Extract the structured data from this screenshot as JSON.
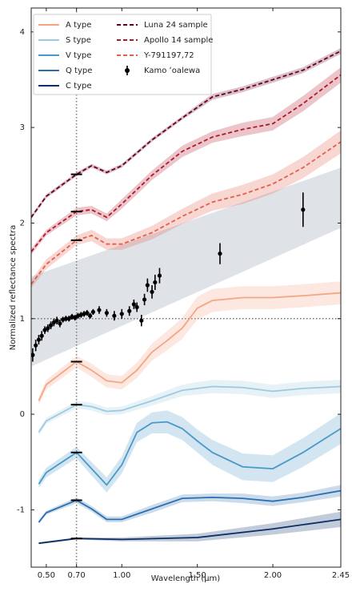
{
  "chart_data": {
    "type": "line",
    "xlabel": "Wavelength (μm)",
    "ylabel": "Normalized reflectance spectra",
    "xlim": [
      0.4,
      2.45
    ],
    "ylim": [
      -1.6,
      4.25
    ],
    "xticks": [
      {
        "value": 0.5,
        "label": "0.50"
      },
      {
        "value": 0.7,
        "label": "0.70"
      },
      {
        "value": 1.0,
        "label": "1.00"
      },
      {
        "value": 1.5,
        "label": "1.50"
      },
      {
        "value": 2.0,
        "label": "2.00"
      },
      {
        "value": 2.45,
        "label": "2.45"
      }
    ],
    "yticks": [
      -1,
      0,
      1,
      2,
      3,
      4
    ],
    "vline": 0.7,
    "hline": 1,
    "band": {
      "color": "#dfe2e6",
      "x": [
        0.4,
        2.45
      ],
      "lower": [
        0.5,
        1.95
      ],
      "upper": [
        1.44,
        2.58
      ]
    },
    "series": [
      {
        "name": "A type",
        "color": "#f4a582",
        "style": "solid",
        "x": [
          0.45,
          0.5,
          0.7,
          0.8,
          0.9,
          1.0,
          1.1,
          1.2,
          1.3,
          1.4,
          1.5,
          1.6,
          1.8,
          2.0,
          2.2,
          2.45
        ],
        "values": [
          0.14,
          0.31,
          0.55,
          0.46,
          0.35,
          0.33,
          0.46,
          0.65,
          0.77,
          0.9,
          1.11,
          1.19,
          1.22,
          1.22,
          1.24,
          1.27
        ],
        "error": [
          0.04,
          0.05,
          0.06,
          0.07,
          0.07,
          0.07,
          0.08,
          0.09,
          0.1,
          0.11,
          0.12,
          0.12,
          0.12,
          0.12,
          0.12,
          0.12
        ]
      },
      {
        "name": "S type",
        "color": "#9ecae1",
        "style": "solid",
        "x": [
          0.45,
          0.5,
          0.7,
          0.8,
          0.9,
          1.0,
          1.2,
          1.4,
          1.6,
          1.8,
          2.0,
          2.2,
          2.45
        ],
        "values": [
          -0.19,
          -0.07,
          0.1,
          0.08,
          0.03,
          0.04,
          0.14,
          0.25,
          0.29,
          0.28,
          0.24,
          0.27,
          0.29
        ],
        "error": [
          0.03,
          0.03,
          0.04,
          0.04,
          0.04,
          0.04,
          0.05,
          0.06,
          0.07,
          0.07,
          0.07,
          0.07,
          0.07
        ]
      },
      {
        "name": "V type",
        "color": "#4a98c9",
        "style": "solid",
        "x": [
          0.45,
          0.5,
          0.7,
          0.8,
          0.9,
          1.0,
          1.1,
          1.2,
          1.3,
          1.4,
          1.5,
          1.6,
          1.8,
          2.0,
          2.2,
          2.45
        ],
        "values": [
          -0.73,
          -0.61,
          -0.4,
          -0.57,
          -0.74,
          -0.53,
          -0.19,
          -0.09,
          -0.08,
          -0.15,
          -0.28,
          -0.4,
          -0.55,
          -0.57,
          -0.4,
          -0.15
        ],
        "error": [
          0.04,
          0.05,
          0.06,
          0.07,
          0.08,
          0.09,
          0.1,
          0.11,
          0.12,
          0.12,
          0.12,
          0.13,
          0.14,
          0.14,
          0.15,
          0.16
        ]
      },
      {
        "name": "Q type",
        "color": "#2c6fb0",
        "style": "solid",
        "x": [
          0.45,
          0.5,
          0.7,
          0.8,
          0.9,
          1.0,
          1.2,
          1.4,
          1.6,
          1.8,
          2.0,
          2.2,
          2.45
        ],
        "values": [
          -1.13,
          -1.03,
          -0.9,
          -0.99,
          -1.1,
          -1.1,
          -0.99,
          -0.88,
          -0.87,
          -0.88,
          -0.91,
          -0.87,
          -0.8
        ],
        "error": [
          0.02,
          0.02,
          0.03,
          0.03,
          0.03,
          0.03,
          0.04,
          0.04,
          0.04,
          0.05,
          0.05,
          0.05,
          0.06
        ]
      },
      {
        "name": "C type",
        "color": "#0b2f66",
        "style": "solid",
        "x": [
          0.45,
          0.7,
          1.0,
          1.5,
          2.0,
          2.45
        ],
        "values": [
          -1.35,
          -1.3,
          -1.31,
          -1.29,
          -1.2,
          -1.1
        ],
        "error": [
          0.01,
          0.01,
          0.02,
          0.04,
          0.06,
          0.08
        ]
      },
      {
        "name": "Luna 24 sample",
        "color": "#67001f",
        "style": "dashed",
        "x": [
          0.4,
          0.5,
          0.7,
          0.8,
          0.9,
          1.0,
          1.2,
          1.4,
          1.6,
          1.8,
          2.0,
          2.2,
          2.45
        ],
        "values": [
          2.06,
          2.28,
          2.51,
          2.6,
          2.53,
          2.6,
          2.87,
          3.1,
          3.32,
          3.4,
          3.5,
          3.6,
          3.8
        ],
        "error": [
          0.02,
          0.02,
          0.02,
          0.02,
          0.02,
          0.02,
          0.02,
          0.02,
          0.03,
          0.03,
          0.03,
          0.03,
          0.03
        ]
      },
      {
        "name": "Apollo 14 sample",
        "color": "#b2182b",
        "style": "dashed",
        "x": [
          0.4,
          0.5,
          0.7,
          0.8,
          0.9,
          1.0,
          1.2,
          1.4,
          1.6,
          1.8,
          2.0,
          2.2,
          2.45
        ],
        "values": [
          1.7,
          1.9,
          2.12,
          2.14,
          2.06,
          2.2,
          2.5,
          2.75,
          2.9,
          2.98,
          3.04,
          3.25,
          3.55
        ],
        "error": [
          0.03,
          0.03,
          0.04,
          0.04,
          0.04,
          0.05,
          0.05,
          0.06,
          0.06,
          0.07,
          0.07,
          0.08,
          0.08
        ]
      },
      {
        "name": "Y-791197,72",
        "color": "#e3604c",
        "style": "dashed",
        "x": [
          0.4,
          0.5,
          0.7,
          0.8,
          0.9,
          1.0,
          1.2,
          1.4,
          1.6,
          1.8,
          2.0,
          2.2,
          2.45
        ],
        "values": [
          1.36,
          1.57,
          1.82,
          1.87,
          1.78,
          1.78,
          1.9,
          2.07,
          2.22,
          2.3,
          2.41,
          2.58,
          2.85
        ],
        "error": [
          0.04,
          0.05,
          0.05,
          0.06,
          0.06,
          0.06,
          0.07,
          0.08,
          0.09,
          0.1,
          0.1,
          0.11,
          0.12
        ]
      },
      {
        "name": "Kamo ʻoalewa",
        "color": "#000000",
        "style": "points",
        "x": [
          0.41,
          0.43,
          0.45,
          0.47,
          0.49,
          0.51,
          0.53,
          0.55,
          0.57,
          0.59,
          0.61,
          0.63,
          0.65,
          0.67,
          0.69,
          0.71,
          0.73,
          0.75,
          0.77,
          0.79,
          0.81,
          0.85,
          0.9,
          0.95,
          1.0,
          1.05,
          1.08,
          1.1,
          1.13,
          1.15,
          1.17,
          1.2,
          1.22,
          1.25,
          1.65,
          2.2
        ],
        "values": [
          0.62,
          0.72,
          0.78,
          0.82,
          0.88,
          0.9,
          0.93,
          0.96,
          0.98,
          0.95,
          0.99,
          1.0,
          1.0,
          1.02,
          1.01,
          1.03,
          1.04,
          1.05,
          1.06,
          1.03,
          1.07,
          1.09,
          1.06,
          1.03,
          1.05,
          1.08,
          1.15,
          1.12,
          0.98,
          1.2,
          1.35,
          1.28,
          1.38,
          1.45,
          1.68,
          2.14
        ],
        "error": [
          0.07,
          0.06,
          0.05,
          0.05,
          0.04,
          0.04,
          0.04,
          0.04,
          0.04,
          0.04,
          0.03,
          0.03,
          0.03,
          0.03,
          0.03,
          0.03,
          0.03,
          0.03,
          0.03,
          0.03,
          0.03,
          0.04,
          0.04,
          0.05,
          0.05,
          0.05,
          0.05,
          0.05,
          0.06,
          0.06,
          0.07,
          0.07,
          0.08,
          0.08,
          0.11,
          0.18
        ]
      }
    ]
  }
}
